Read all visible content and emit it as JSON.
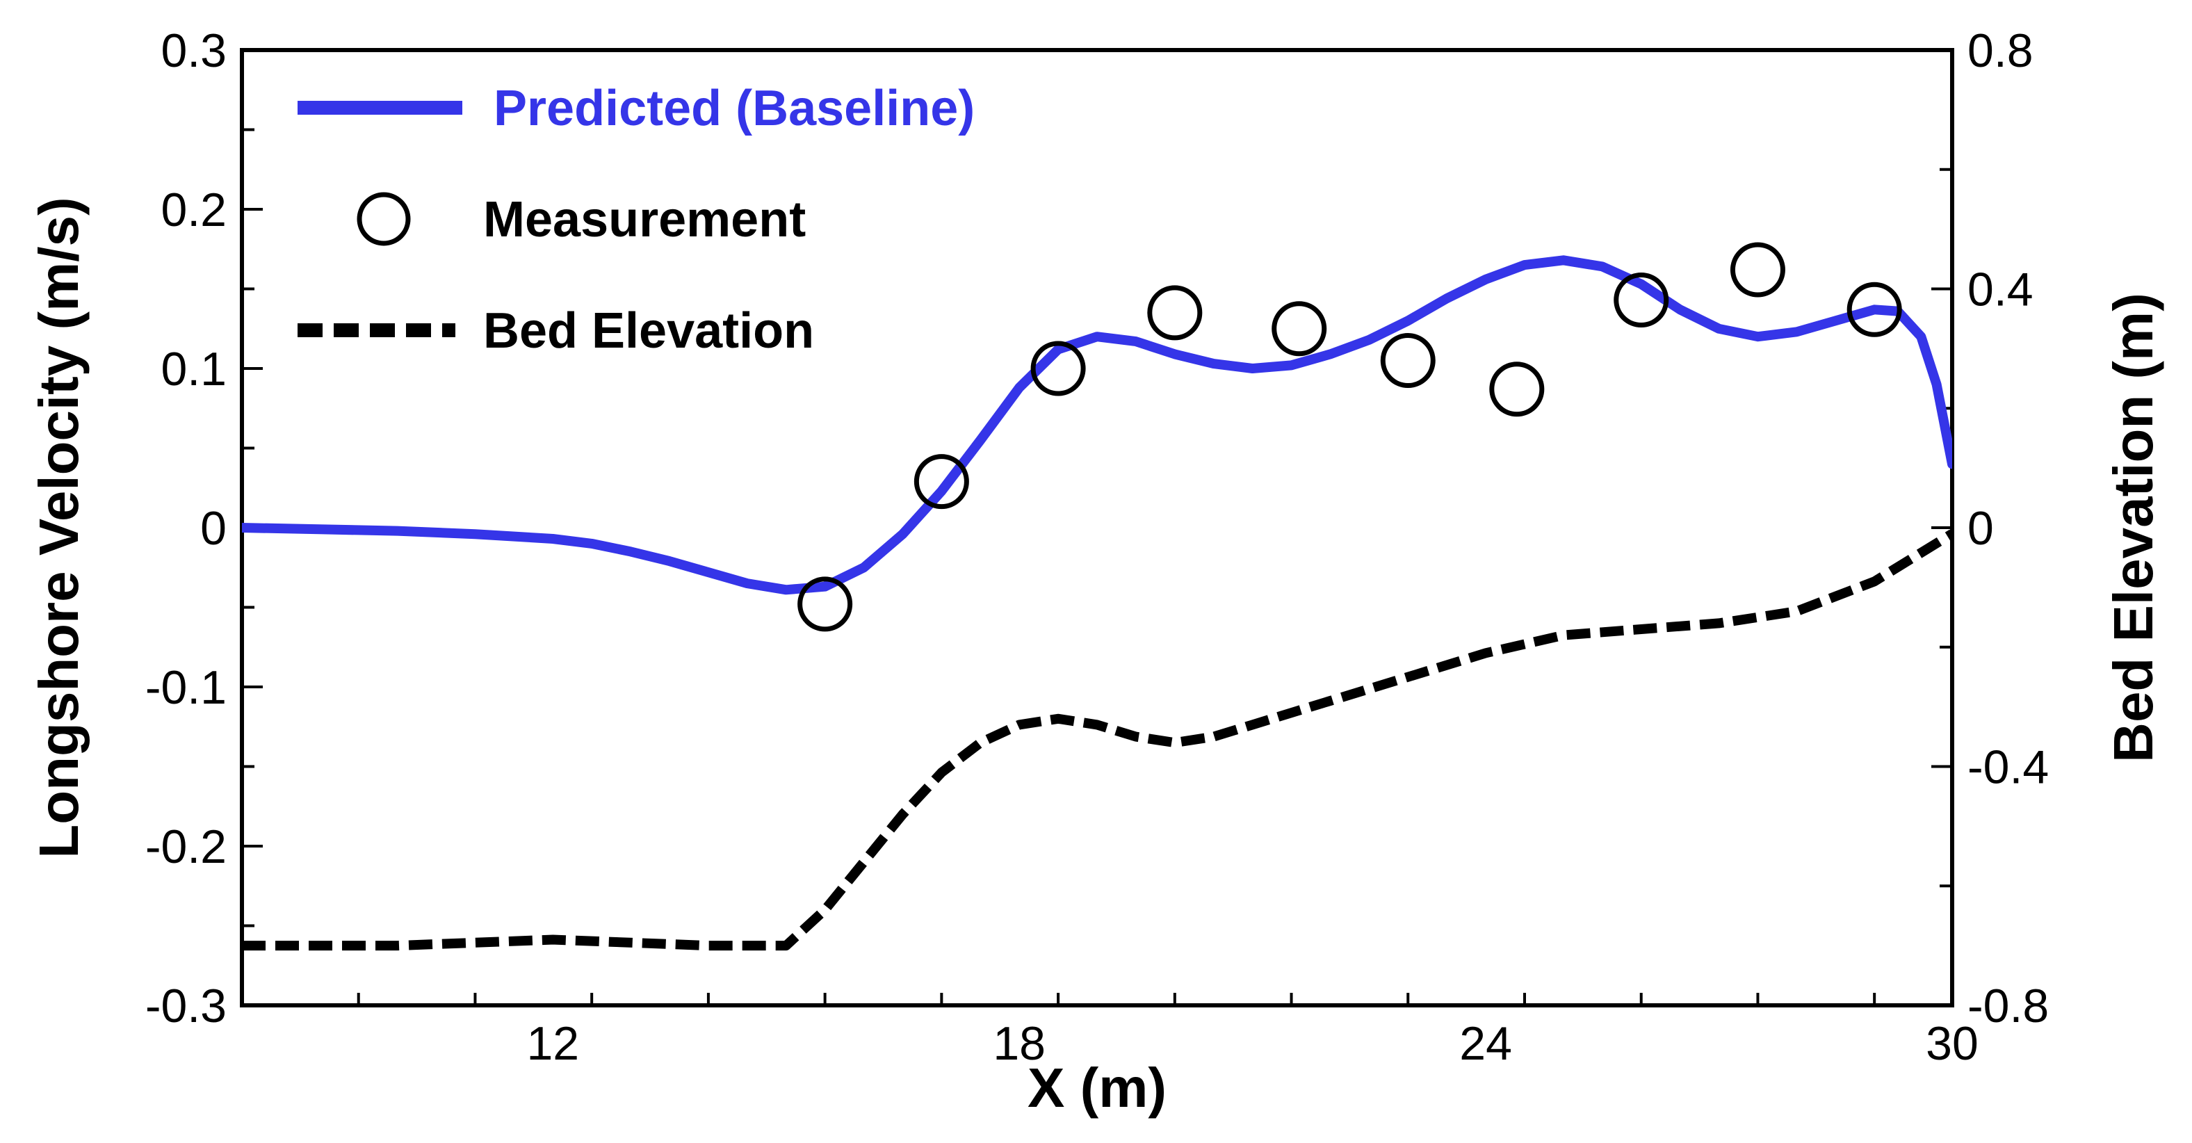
{
  "chart_data": {
    "type": "line",
    "xlabel": "X (m)",
    "ylabel_left": "Longshore Velocity (m/s)",
    "ylabel_right": "Bed Elevation (m)",
    "xlim": [
      8,
      30
    ],
    "ylim_left": [
      -0.3,
      0.3
    ],
    "ylim_right": [
      -0.8,
      0.8
    ],
    "x_ticks": [
      12,
      18,
      24,
      30
    ],
    "x_tick_labels": [
      "12",
      "18",
      "24",
      "30"
    ],
    "y_left_ticks": [
      -0.3,
      -0.2,
      -0.1,
      0,
      0.1,
      0.2,
      0.3
    ],
    "y_left_tick_labels": [
      "-0.3",
      "-0.2",
      "-0.1",
      "0",
      "0.1",
      "0.2",
      "0.3"
    ],
    "y_right_ticks": [
      -0.8,
      -0.4,
      0,
      0.4,
      0.8
    ],
    "y_right_tick_labels": [
      "-0.8",
      "-0.4",
      "0",
      "0.4",
      "0.8"
    ],
    "grid": false,
    "legend_position": "top-left",
    "series": [
      {
        "name": "Predicted (Baseline)",
        "style": "solid",
        "color": "#3535e8",
        "axis": "left",
        "x": [
          8,
          9,
          10,
          11,
          12,
          12.5,
          13,
          13.5,
          14,
          14.5,
          15,
          15.5,
          16,
          16.5,
          17,
          17.5,
          18,
          18.5,
          19,
          19.5,
          20,
          20.5,
          21,
          21.5,
          22,
          22.5,
          23,
          23.5,
          24,
          24.5,
          25,
          25.5,
          26,
          26.5,
          27,
          27.5,
          28,
          28.5,
          29,
          29.3,
          29.6,
          29.8,
          30
        ],
        "values": [
          0.0,
          -0.001,
          -0.002,
          -0.004,
          -0.007,
          -0.01,
          -0.015,
          -0.021,
          -0.028,
          -0.035,
          -0.039,
          -0.037,
          -0.025,
          -0.004,
          0.023,
          0.055,
          0.088,
          0.112,
          0.12,
          0.117,
          0.109,
          0.103,
          0.1,
          0.102,
          0.109,
          0.118,
          0.13,
          0.144,
          0.156,
          0.165,
          0.168,
          0.164,
          0.153,
          0.137,
          0.125,
          0.12,
          0.123,
          0.13,
          0.137,
          0.136,
          0.12,
          0.09,
          0.04
        ]
      },
      {
        "name": "Measurement",
        "style": "markers",
        "color": "#000000",
        "axis": "left",
        "x": [
          15.5,
          17.0,
          18.5,
          20.0,
          21.6,
          23.0,
          24.4,
          26.0,
          27.5,
          29.0
        ],
        "values": [
          -0.048,
          0.029,
          0.1,
          0.135,
          0.125,
          0.105,
          0.087,
          0.143,
          0.162,
          0.137
        ]
      },
      {
        "name": "Bed Elevation",
        "style": "dashed",
        "color": "#000000",
        "axis": "right",
        "x": [
          8,
          10,
          12,
          14,
          15.0,
          15.5,
          16,
          16.5,
          17,
          17.5,
          18,
          18.5,
          19,
          19.5,
          20,
          20.5,
          21,
          21.5,
          22,
          23,
          24,
          25,
          26,
          27,
          28,
          29,
          30
        ],
        "values": [
          -0.7,
          -0.7,
          -0.69,
          -0.7,
          -0.7,
          -0.64,
          -0.56,
          -0.48,
          -0.41,
          -0.36,
          -0.33,
          -0.32,
          -0.33,
          -0.35,
          -0.36,
          -0.35,
          -0.33,
          -0.31,
          -0.29,
          -0.25,
          -0.21,
          -0.18,
          -0.17,
          -0.16,
          -0.14,
          -0.09,
          -0.01
        ]
      }
    ]
  }
}
